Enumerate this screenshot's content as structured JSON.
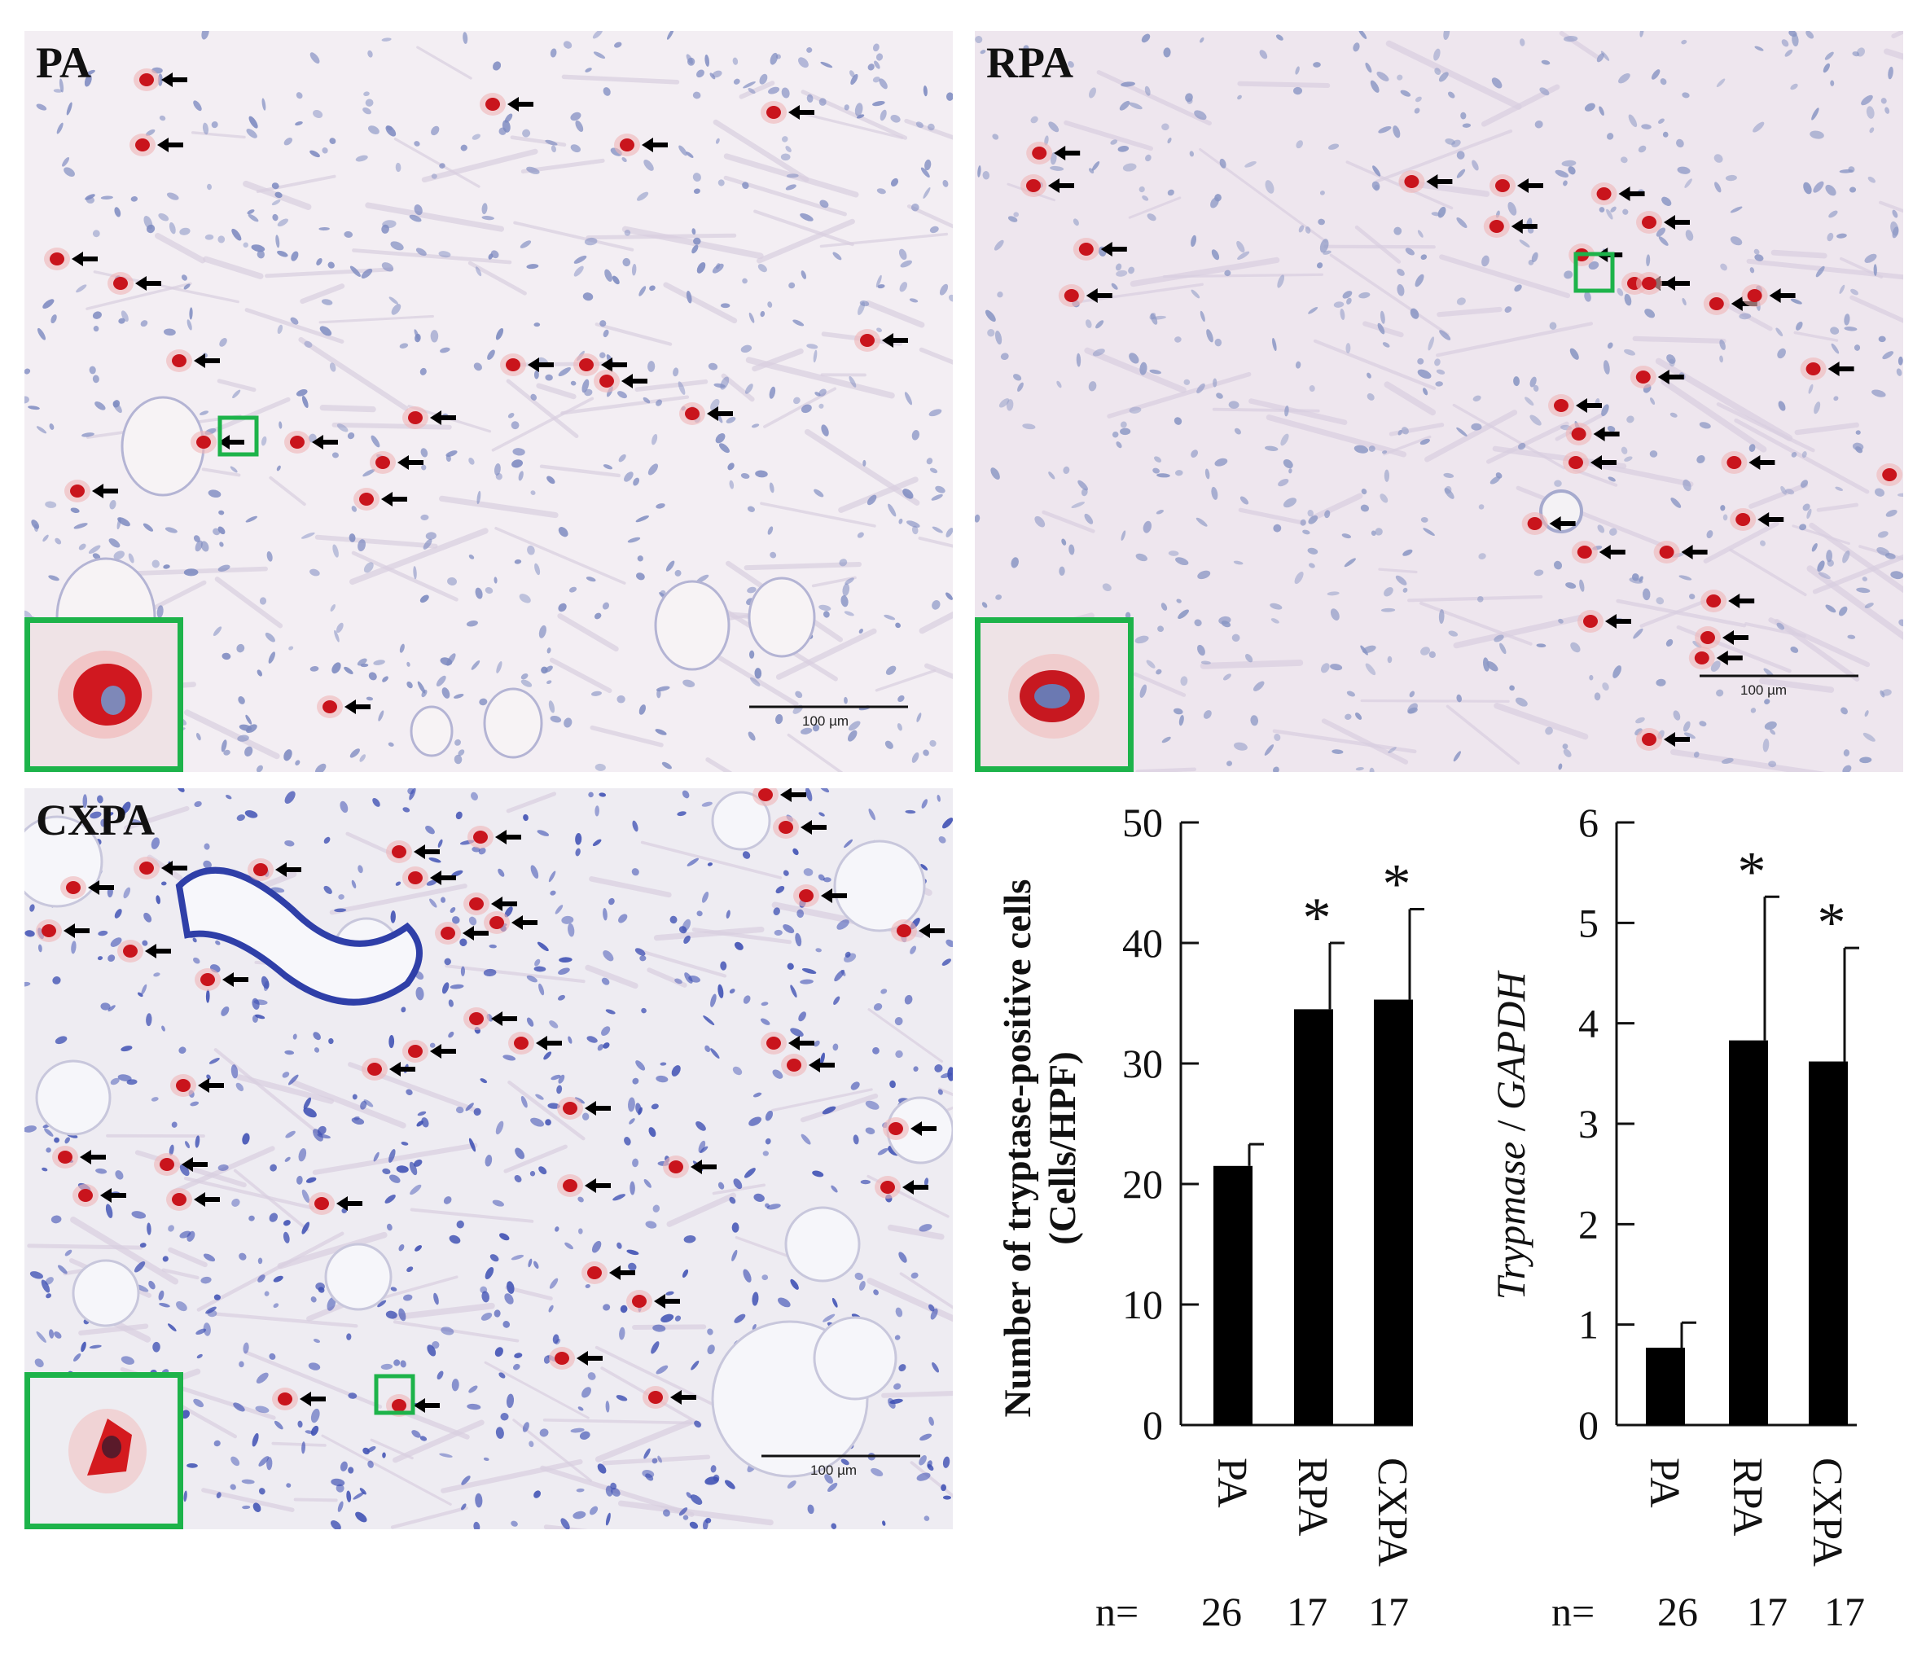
{
  "panels": [
    {
      "id": "pa",
      "label": "PA",
      "scale_label": "100 µm",
      "stain": "#f3eef3",
      "tissue": "#7d8ac0"
    },
    {
      "id": "rpa",
      "label": "RPA",
      "scale_label": "100 µm",
      "stain": "#eee6ee",
      "tissue": "#8a96c4"
    },
    {
      "id": "cxpa",
      "label": "CXPA",
      "scale_label": "100 µm",
      "stain": "#eeecf2",
      "tissue": "#3d4fb3"
    }
  ],
  "colors": {
    "inset_border": "#1db34a",
    "mast_cell": "#c9141c",
    "bar": "#000000"
  },
  "chart_data": [
    {
      "type": "bar",
      "categories": [
        "PA",
        "RPA",
        "CXPA"
      ],
      "values": [
        21.5,
        34.5,
        35.3
      ],
      "errors": [
        1.8,
        5.5,
        7.5
      ],
      "significance": [
        "",
        "*",
        "*"
      ],
      "ylabel_line1": "Number of tryptase-positive cells",
      "ylabel_line2": "(Cells/HPF)",
      "ylim": [
        0,
        50
      ],
      "yticks": [
        "0",
        "10",
        "20",
        "30",
        "40",
        "50"
      ],
      "n_label": "n=",
      "n_values": [
        "26",
        "17",
        "17"
      ]
    },
    {
      "type": "bar",
      "categories": [
        "PA",
        "RPA",
        "CXPA"
      ],
      "values": [
        0.77,
        3.83,
        3.62
      ],
      "errors": [
        0.25,
        1.43,
        1.13
      ],
      "significance": [
        "",
        "*",
        "*"
      ],
      "ylabel_gene": "Trypmase",
      "ylabel_sep": " / ",
      "ylabel_ref": "GAPDH",
      "ylim": [
        0,
        6
      ],
      "yticks": [
        "0",
        "1",
        "2",
        "3",
        "4",
        "5",
        "6"
      ],
      "n_label": "n=",
      "n_values": [
        "26",
        "17",
        "17"
      ]
    }
  ]
}
